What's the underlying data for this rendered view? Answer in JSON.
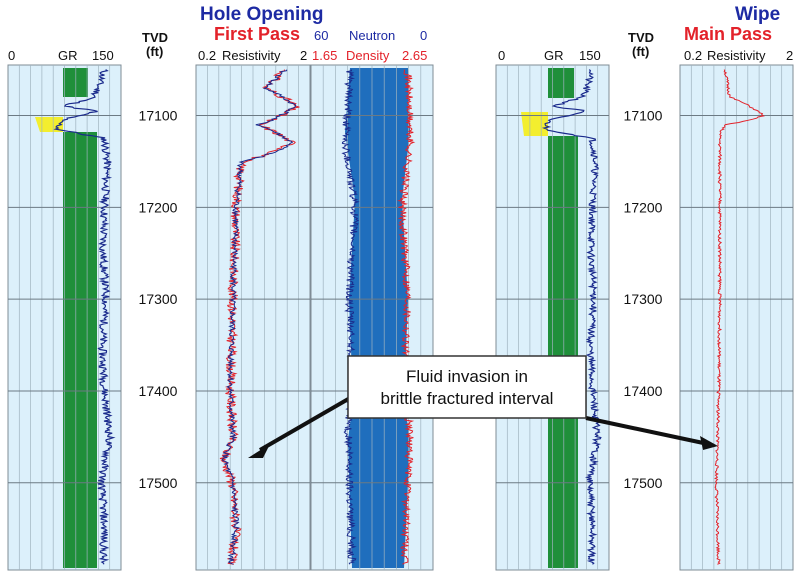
{
  "chart_data": {
    "type": "line",
    "title_left_line1": "Hole Opening",
    "title_left_line2": "First Pass",
    "title_right_line1": "Wipe",
    "title_right_line2": "Main Pass",
    "depth_axis": {
      "label_line1": "TVD",
      "label_line2": "(ft)",
      "ticks": [
        17100,
        17200,
        17300,
        17400,
        17500
      ],
      "range": [
        17045,
        17595
      ]
    },
    "tracks": {
      "gr_left": {
        "label": "GR",
        "min_label": "0",
        "max_label": "150",
        "range": [
          0,
          150
        ]
      },
      "resistivity_left": {
        "label": "Resistivity",
        "min_label": "0.2",
        "max_label": "2"
      },
      "neutron_density": {
        "neutron_label": "Neutron",
        "neutron_min_label": "60",
        "neutron_max_label": "0",
        "density_label": "Density",
        "density_min_label": "1.65",
        "density_max_label": "2.65"
      },
      "gr_right": {
        "label": "GR",
        "min_label": "0",
        "max_label": "150",
        "range": [
          0,
          150
        ]
      },
      "resistivity_right": {
        "label": "Resistivity",
        "min_label": "0.2",
        "max_label": "2"
      }
    },
    "annotation": {
      "line1": "Fluid invasion in",
      "line2": "brittle fractured interval"
    },
    "series": [
      {
        "track": "gr",
        "depth": [
          17050,
          17080,
          17090,
          17095,
          17105,
          17115,
          17125,
          17150,
          17200,
          17250,
          17300,
          17350,
          17400,
          17450,
          17500,
          17550,
          17590
        ],
        "values": [
          128,
          115,
          75,
          118,
          70,
          66,
          128,
          132,
          128,
          126,
          130,
          125,
          128,
          135,
          124,
          128,
          126
        ]
      },
      {
        "track": "resistivity_first_pass",
        "depth": [
          17050,
          17070,
          17090,
          17110,
          17130,
          17150,
          17200,
          17300,
          17400,
          17450,
          17475,
          17500,
          17550,
          17590
        ],
        "values": [
          1.2,
          0.8,
          1.5,
          0.7,
          1.4,
          0.5,
          0.45,
          0.42,
          0.4,
          0.42,
          0.35,
          0.42,
          0.45,
          0.4
        ]
      },
      {
        "track": "resistivity_main_pass",
        "depth": [
          17050,
          17080,
          17100,
          17110,
          17120,
          17150,
          17200,
          17300,
          17400,
          17450,
          17500,
          17550,
          17590
        ],
        "values": [
          0.5,
          0.55,
          1.1,
          0.5,
          0.45,
          0.45,
          0.45,
          0.45,
          0.44,
          0.43,
          0.42,
          0.43,
          0.44
        ]
      }
    ],
    "grid": true
  }
}
